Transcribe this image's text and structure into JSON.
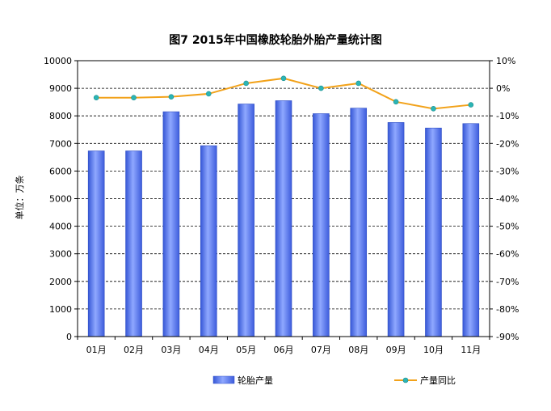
{
  "chart_data": {
    "type": "bar+line",
    "title": "图7 2015年中国橡胶轮胎外胎产量统计图",
    "ylabel_left": "单位：万条",
    "categories": [
      "01月",
      "02月",
      "03月",
      "04月",
      "05月",
      "06月",
      "07月",
      "08月",
      "09月",
      "10月",
      "11月"
    ],
    "series": [
      {
        "name": "轮胎产量",
        "type": "bar",
        "axis": "left",
        "values": [
          6730,
          6730,
          8150,
          6920,
          8430,
          8550,
          8080,
          8280,
          7760,
          7560,
          7720
        ]
      },
      {
        "name": "产量同比",
        "type": "line",
        "axis": "right",
        "values": [
          -3.4,
          -3.4,
          -3.1,
          -2.0,
          1.8,
          3.6,
          0.0,
          1.8,
          -4.9,
          -7.4,
          -6.0
        ]
      }
    ],
    "y_left": {
      "min": 0,
      "max": 10000,
      "step": 1000,
      "ticks": [
        "0",
        "1000",
        "2000",
        "3000",
        "4000",
        "5000",
        "6000",
        "7000",
        "8000",
        "9000",
        "10000"
      ]
    },
    "y_right": {
      "min": -90,
      "max": 10,
      "step": 10,
      "ticks": [
        "-90%",
        "-80%",
        "-70%",
        "-60%",
        "-50%",
        "-40%",
        "-30%",
        "-20%",
        "-10%",
        "0%",
        "10%"
      ]
    },
    "grid": "dashed horizontal",
    "legend_position": "bottom",
    "colors": {
      "bar": "#4f6fe6",
      "bar_light": "#8fa8ff",
      "line": "#f2a21a",
      "marker": "#2bb5b5"
    }
  }
}
